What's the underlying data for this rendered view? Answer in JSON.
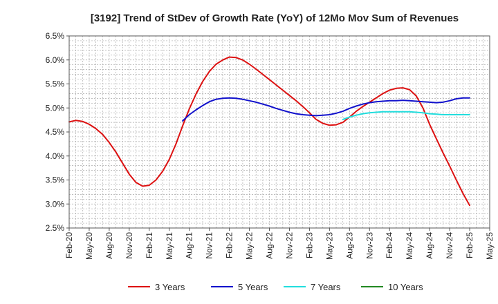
{
  "chart_data": {
    "type": "line",
    "title": "[3192]  Trend of StDev of Growth Rate (YoY) of 12Mo Mov Sum of Revenues",
    "xlabel": "",
    "ylabel": "",
    "ylim": [
      2.5,
      6.5
    ],
    "grid": true,
    "legend_position": "bottom",
    "y_ticks": [
      2.5,
      3.0,
      3.5,
      4.0,
      4.5,
      5.0,
      5.5,
      6.0,
      6.5
    ],
    "y_tick_labels": [
      "2.5%",
      "3.0%",
      "3.5%",
      "4.0%",
      "4.5%",
      "5.0%",
      "5.5%",
      "6.0%",
      "6.5%"
    ],
    "x_range": [
      0,
      63
    ],
    "x_ticks": [
      0,
      3,
      6,
      9,
      12,
      15,
      18,
      21,
      24,
      27,
      30,
      33,
      36,
      39,
      42,
      45,
      48,
      51,
      54,
      57,
      60,
      63
    ],
    "x_tick_labels": [
      "Feb-20",
      "May-20",
      "Aug-20",
      "Nov-20",
      "Feb-21",
      "May-21",
      "Aug-21",
      "Nov-21",
      "Feb-22",
      "May-22",
      "Aug-22",
      "Nov-22",
      "Feb-23",
      "May-23",
      "Aug-23",
      "Nov-23",
      "Feb-24",
      "May-24",
      "Aug-24",
      "Nov-24",
      "Feb-25",
      "May-25"
    ],
    "series": [
      {
        "name": "3 Years",
        "color": "#dd1111",
        "x": [
          0,
          1,
          2,
          3,
          4,
          5,
          6,
          7,
          8,
          9,
          10,
          11,
          12,
          13,
          14,
          15,
          16,
          17,
          18,
          19,
          20,
          21,
          22,
          23,
          24,
          25,
          26,
          27,
          28,
          29,
          30,
          31,
          32,
          33,
          34,
          35,
          36,
          37,
          38,
          39,
          40,
          41,
          42,
          43,
          44,
          45,
          46,
          47,
          48,
          49,
          50,
          51,
          52,
          53,
          54,
          55,
          56,
          57,
          58,
          59,
          60
        ],
        "values": [
          4.71,
          4.74,
          4.72,
          4.66,
          4.57,
          4.45,
          4.28,
          4.08,
          3.85,
          3.62,
          3.45,
          3.37,
          3.39,
          3.5,
          3.68,
          3.93,
          4.25,
          4.63,
          4.98,
          5.29,
          5.55,
          5.76,
          5.91,
          6.0,
          6.06,
          6.05,
          6.0,
          5.91,
          5.81,
          5.7,
          5.59,
          5.48,
          5.37,
          5.26,
          5.15,
          5.03,
          4.9,
          4.76,
          4.68,
          4.64,
          4.65,
          4.7,
          4.81,
          4.93,
          5.03,
          5.12,
          5.21,
          5.3,
          5.37,
          5.41,
          5.42,
          5.38,
          5.25,
          5.0,
          4.66,
          4.36,
          4.07,
          3.79,
          3.5,
          3.22,
          2.97
        ]
      },
      {
        "name": "5 Years",
        "color": "#1111cc",
        "x": [
          17,
          18,
          19,
          20,
          21,
          22,
          23,
          24,
          25,
          26,
          27,
          28,
          29,
          30,
          31,
          32,
          33,
          34,
          35,
          36,
          37,
          38,
          39,
          40,
          41,
          42,
          43,
          44,
          45,
          46,
          47,
          48,
          49,
          50,
          51,
          52,
          53,
          54,
          55,
          56,
          57,
          58,
          59,
          60
        ],
        "values": [
          4.73,
          4.86,
          4.96,
          5.05,
          5.13,
          5.18,
          5.2,
          5.21,
          5.2,
          5.18,
          5.15,
          5.12,
          5.08,
          5.04,
          4.99,
          4.95,
          4.91,
          4.88,
          4.86,
          4.85,
          4.84,
          4.85,
          4.86,
          4.89,
          4.93,
          4.99,
          5.04,
          5.08,
          5.11,
          5.13,
          5.14,
          5.15,
          5.15,
          5.16,
          5.15,
          5.14,
          5.13,
          5.12,
          5.11,
          5.12,
          5.15,
          5.19,
          5.21,
          5.21
        ]
      },
      {
        "name": "7 Years",
        "color": "#22dddd",
        "x": [
          41,
          42,
          43,
          44,
          45,
          46,
          47,
          48,
          49,
          50,
          51,
          52,
          53,
          54,
          55,
          56,
          57,
          58,
          59,
          60
        ],
        "values": [
          4.76,
          4.81,
          4.85,
          4.88,
          4.9,
          4.91,
          4.92,
          4.92,
          4.92,
          4.92,
          4.92,
          4.91,
          4.9,
          4.88,
          4.87,
          4.86,
          4.86,
          4.86,
          4.86,
          4.86
        ]
      },
      {
        "name": "10 Years",
        "color": "#228822",
        "x": [],
        "values": []
      }
    ]
  }
}
